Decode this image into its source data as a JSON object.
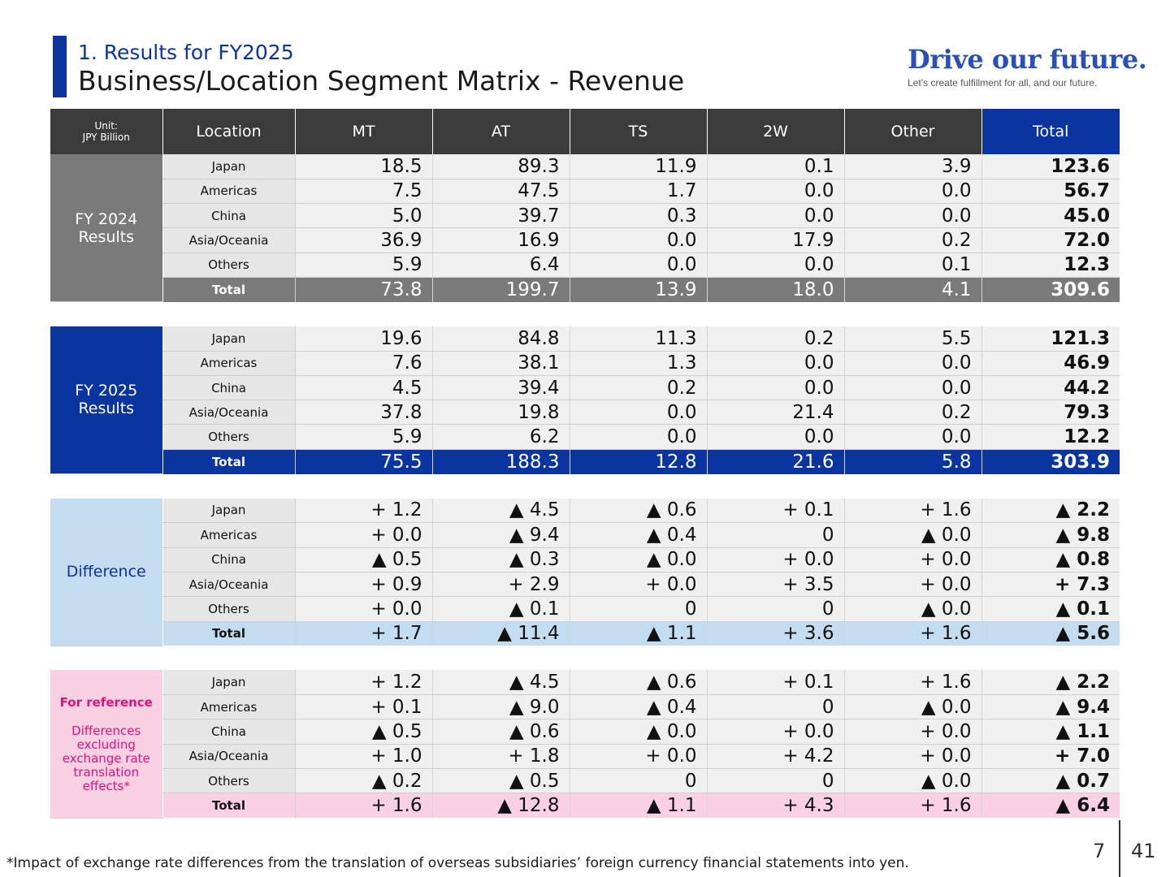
{
  "header": {
    "subtitle": "1. Results for FY2025",
    "title": "Business/Location Segment Matrix - Revenue",
    "slogan": "Drive our future.",
    "tagline": "Let’s create fulfillment for all, and our future."
  },
  "table": {
    "unit_line1": "Unit:",
    "unit_line2": "JPY Billion",
    "location_header": "Location",
    "columns": [
      "MT",
      "AT",
      "TS",
      "2W",
      "Other",
      "Total"
    ],
    "groups": [
      {
        "label_line1": "FY 2024",
        "label_line2": "Results",
        "rows": [
          {
            "location": "Japan",
            "values": [
              "18.5",
              "89.3",
              "11.9",
              "0.1",
              "3.9",
              "123.6"
            ]
          },
          {
            "location": "Americas",
            "values": [
              "7.5",
              "47.5",
              "1.7",
              "0.0",
              "0.0",
              "56.7"
            ]
          },
          {
            "location": "China",
            "values": [
              "5.0",
              "39.7",
              "0.3",
              "0.0",
              "0.0",
              "45.0"
            ]
          },
          {
            "location": "Asia/Oceania",
            "values": [
              "36.9",
              "16.9",
              "0.0",
              "17.9",
              "0.2",
              "72.0"
            ]
          },
          {
            "location": "Others",
            "values": [
              "5.9",
              "6.4",
              "0.0",
              "0.0",
              "0.1",
              "12.3"
            ]
          },
          {
            "location": "Total",
            "values": [
              "73.8",
              "199.7",
              "13.9",
              "18.0",
              "4.1",
              "309.6"
            ]
          }
        ]
      },
      {
        "label_line1": "FY 2025",
        "label_line2": "Results",
        "rows": [
          {
            "location": "Japan",
            "values": [
              "19.6",
              "84.8",
              "11.3",
              "0.2",
              "5.5",
              "121.3"
            ]
          },
          {
            "location": "Americas",
            "values": [
              "7.6",
              "38.1",
              "1.3",
              "0.0",
              "0.0",
              "46.9"
            ]
          },
          {
            "location": "China",
            "values": [
              "4.5",
              "39.4",
              "0.2",
              "0.0",
              "0.0",
              "44.2"
            ]
          },
          {
            "location": "Asia/Oceania",
            "values": [
              "37.8",
              "19.8",
              "0.0",
              "21.4",
              "0.2",
              "79.3"
            ]
          },
          {
            "location": "Others",
            "values": [
              "5.9",
              "6.2",
              "0.0",
              "0.0",
              "0.0",
              "12.2"
            ]
          },
          {
            "location": "Total",
            "values": [
              "75.5",
              "188.3",
              "12.8",
              "21.6",
              "5.8",
              "303.9"
            ]
          }
        ]
      },
      {
        "label_line1": "Difference",
        "label_line2": "",
        "rows": [
          {
            "location": "Japan",
            "values": [
              "+ 1.2",
              "▲ 4.5",
              "▲ 0.6",
              "+ 0.1",
              "+ 1.6",
              "▲ 2.2"
            ]
          },
          {
            "location": "Americas",
            "values": [
              "+ 0.0",
              "▲ 9.4",
              "▲ 0.4",
              "0",
              "▲ 0.0",
              "▲ 9.8"
            ]
          },
          {
            "location": "China",
            "values": [
              "▲ 0.5",
              "▲ 0.3",
              "▲ 0.0",
              "+ 0.0",
              "+ 0.0",
              "▲ 0.8"
            ]
          },
          {
            "location": "Asia/Oceania",
            "values": [
              "+ 0.9",
              "+ 2.9",
              "+ 0.0",
              "+ 3.5",
              "+ 0.0",
              "+ 7.3"
            ]
          },
          {
            "location": "Others",
            "values": [
              "+ 0.0",
              "▲ 0.1",
              "0",
              "0",
              "▲ 0.0",
              "▲ 0.1"
            ]
          },
          {
            "location": "Total",
            "values": [
              "+ 1.7",
              "▲ 11.4",
              "▲ 1.1",
              "+ 3.6",
              "+ 1.6",
              "▲ 5.6"
            ]
          }
        ]
      },
      {
        "label_line1": "For reference",
        "label_line2": "Differences excluding exchange rate translation effects*",
        "rows": [
          {
            "location": "Japan",
            "values": [
              "+ 1.2",
              "▲ 4.5",
              "▲ 0.6",
              "+ 0.1",
              "+ 1.6",
              "▲ 2.2"
            ]
          },
          {
            "location": "Americas",
            "values": [
              "+ 0.1",
              "▲ 9.0",
              "▲ 0.4",
              "0",
              "▲ 0.0",
              "▲ 9.4"
            ]
          },
          {
            "location": "China",
            "values": [
              "▲ 0.5",
              "▲ 0.6",
              "▲ 0.0",
              "+ 0.0",
              "+ 0.0",
              "▲ 1.1"
            ]
          },
          {
            "location": "Asia/Oceania",
            "values": [
              "+ 1.0",
              "+ 1.8",
              "+ 0.0",
              "+ 4.2",
              "+ 0.0",
              "+ 7.0"
            ]
          },
          {
            "location": "Others",
            "values": [
              "▲ 0.2",
              "▲ 0.5",
              "0",
              "0",
              "▲ 0.0",
              "▲ 0.7"
            ]
          },
          {
            "location": "Total",
            "values": [
              "+ 1.6",
              "▲ 12.8",
              "▲ 1.1",
              "+ 4.3",
              "+ 1.6",
              "▲ 6.4"
            ]
          }
        ]
      }
    ]
  },
  "footnote": "*Impact of exchange rate differences from the translation of overseas subsidiaries’ foreign currency financial statements into yen.",
  "page": {
    "current": "7",
    "total": "41"
  },
  "colors": {
    "brand_blue": "#0a34a0",
    "fy2024_gray": "#7a7a7a",
    "difference_blue": "#c4dcf0",
    "reference_pink": "#fad1e3",
    "reference_text": "#e0117c"
  }
}
